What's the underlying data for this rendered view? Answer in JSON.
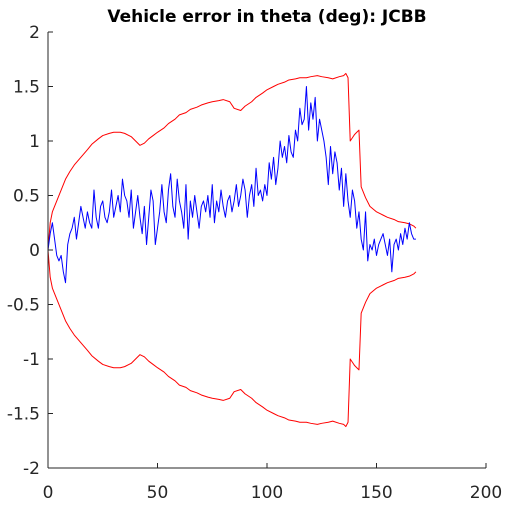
{
  "chart_data": {
    "type": "line",
    "title": "Vehicle error in theta (deg): JCBB",
    "xlabel": "",
    "ylabel": "",
    "xlim": [
      0,
      200
    ],
    "ylim": [
      -2,
      2
    ],
    "xticks": [
      0,
      50,
      100,
      150,
      200
    ],
    "yticks": [
      -2,
      -1.5,
      -1,
      -0.5,
      0,
      0.5,
      1,
      1.5,
      2
    ],
    "xtick_labels": [
      "0",
      "50",
      "100",
      "150",
      "200"
    ],
    "ytick_labels": [
      "-2",
      "-1.5",
      "-1",
      "-0.5",
      "0",
      "0.5",
      "1",
      "1.5",
      "2"
    ],
    "grid": false,
    "legend": "none",
    "series": [
      {
        "color": "#ff0000",
        "role": "upper-bound",
        "x": [
          0,
          1,
          2,
          4,
          6,
          8,
          10,
          12,
          15,
          18,
          20,
          23,
          25,
          28,
          30,
          33,
          35,
          38,
          40,
          42,
          44,
          46,
          48,
          50,
          53,
          55,
          58,
          60,
          63,
          65,
          68,
          70,
          73,
          75,
          78,
          80,
          83,
          85,
          88,
          90,
          93,
          95,
          98,
          100,
          103,
          105,
          108,
          110,
          113,
          115,
          118,
          120,
          123,
          125,
          128,
          130,
          133,
          135,
          136,
          137,
          138,
          139,
          140,
          141,
          142,
          143,
          145,
          147,
          150,
          153,
          155,
          158,
          160,
          163,
          165,
          167,
          168
        ],
        "y": [
          0.0,
          0.25,
          0.35,
          0.45,
          0.55,
          0.65,
          0.72,
          0.78,
          0.85,
          0.92,
          0.97,
          1.02,
          1.05,
          1.07,
          1.08,
          1.08,
          1.07,
          1.04,
          1.0,
          0.96,
          0.98,
          1.02,
          1.05,
          1.08,
          1.12,
          1.16,
          1.2,
          1.24,
          1.26,
          1.29,
          1.31,
          1.33,
          1.35,
          1.36,
          1.37,
          1.38,
          1.36,
          1.3,
          1.28,
          1.32,
          1.36,
          1.4,
          1.44,
          1.47,
          1.5,
          1.52,
          1.54,
          1.56,
          1.57,
          1.58,
          1.58,
          1.59,
          1.6,
          1.59,
          1.58,
          1.57,
          1.59,
          1.6,
          1.62,
          1.58,
          1.0,
          1.03,
          1.06,
          1.08,
          1.1,
          0.58,
          0.48,
          0.4,
          0.35,
          0.32,
          0.3,
          0.28,
          0.26,
          0.25,
          0.24,
          0.22,
          0.2
        ]
      },
      {
        "color": "#ff0000",
        "role": "lower-bound",
        "x": [
          0,
          1,
          2,
          4,
          6,
          8,
          10,
          12,
          15,
          18,
          20,
          23,
          25,
          28,
          30,
          33,
          35,
          38,
          40,
          42,
          44,
          46,
          48,
          50,
          53,
          55,
          58,
          60,
          63,
          65,
          68,
          70,
          73,
          75,
          78,
          80,
          83,
          85,
          88,
          90,
          93,
          95,
          98,
          100,
          103,
          105,
          108,
          110,
          113,
          115,
          118,
          120,
          123,
          125,
          128,
          130,
          133,
          135,
          136,
          137,
          138,
          139,
          140,
          141,
          142,
          143,
          145,
          147,
          150,
          153,
          155,
          158,
          160,
          163,
          165,
          167,
          168
        ],
        "y": [
          0.0,
          -0.25,
          -0.35,
          -0.45,
          -0.55,
          -0.65,
          -0.72,
          -0.78,
          -0.85,
          -0.92,
          -0.97,
          -1.02,
          -1.05,
          -1.07,
          -1.08,
          -1.08,
          -1.07,
          -1.04,
          -1.0,
          -0.96,
          -0.98,
          -1.02,
          -1.05,
          -1.08,
          -1.12,
          -1.16,
          -1.2,
          -1.24,
          -1.26,
          -1.29,
          -1.31,
          -1.33,
          -1.35,
          -1.36,
          -1.37,
          -1.38,
          -1.36,
          -1.3,
          -1.28,
          -1.32,
          -1.36,
          -1.4,
          -1.44,
          -1.47,
          -1.5,
          -1.52,
          -1.54,
          -1.56,
          -1.57,
          -1.58,
          -1.58,
          -1.59,
          -1.6,
          -1.59,
          -1.58,
          -1.57,
          -1.59,
          -1.6,
          -1.62,
          -1.58,
          -1.0,
          -1.03,
          -1.06,
          -1.08,
          -1.1,
          -0.58,
          -0.48,
          -0.4,
          -0.35,
          -0.32,
          -0.3,
          -0.28,
          -0.26,
          -0.25,
          -0.24,
          -0.22,
          -0.2
        ]
      },
      {
        "color": "#0000ff",
        "role": "error",
        "x": [
          0,
          1,
          2,
          3,
          4,
          5,
          6,
          7,
          8,
          9,
          10,
          11,
          12,
          13,
          14,
          15,
          16,
          17,
          18,
          19,
          20,
          21,
          22,
          23,
          24,
          25,
          26,
          27,
          28,
          29,
          30,
          31,
          32,
          33,
          34,
          35,
          36,
          37,
          38,
          39,
          40,
          41,
          42,
          43,
          44,
          45,
          46,
          47,
          48,
          49,
          50,
          51,
          52,
          53,
          54,
          55,
          56,
          57,
          58,
          59,
          60,
          61,
          62,
          63,
          64,
          65,
          66,
          67,
          68,
          69,
          70,
          71,
          72,
          73,
          74,
          75,
          76,
          77,
          78,
          79,
          80,
          81,
          82,
          83,
          84,
          85,
          86,
          87,
          88,
          89,
          90,
          91,
          92,
          93,
          94,
          95,
          96,
          97,
          98,
          99,
          100,
          101,
          102,
          103,
          104,
          105,
          106,
          107,
          108,
          109,
          110,
          111,
          112,
          113,
          114,
          115,
          116,
          117,
          118,
          119,
          120,
          121,
          122,
          123,
          124,
          125,
          126,
          127,
          128,
          129,
          130,
          131,
          132,
          133,
          134,
          135,
          136,
          137,
          138,
          139,
          140,
          141,
          142,
          143,
          144,
          145,
          146,
          147,
          148,
          149,
          150,
          151,
          152,
          153,
          154,
          155,
          156,
          157,
          158,
          159,
          160,
          161,
          162,
          163,
          164,
          165,
          166,
          167,
          168
        ],
        "y": [
          0.0,
          0.15,
          0.25,
          0.1,
          -0.05,
          -0.1,
          -0.05,
          -0.2,
          -0.3,
          0.05,
          0.15,
          0.2,
          0.3,
          0.1,
          0.25,
          0.4,
          0.3,
          0.2,
          0.35,
          0.25,
          0.2,
          0.55,
          0.3,
          0.2,
          0.4,
          0.45,
          0.3,
          0.25,
          0.35,
          0.55,
          0.3,
          0.4,
          0.5,
          0.35,
          0.65,
          0.5,
          0.45,
          0.3,
          0.55,
          0.2,
          0.35,
          0.5,
          0.3,
          0.15,
          0.4,
          0.05,
          0.3,
          0.55,
          0.45,
          0.05,
          0.2,
          0.35,
          0.6,
          0.35,
          0.25,
          0.55,
          0.7,
          0.4,
          0.3,
          0.65,
          0.45,
          0.35,
          0.2,
          0.6,
          0.1,
          0.45,
          0.3,
          0.5,
          0.35,
          0.2,
          0.4,
          0.45,
          0.35,
          0.5,
          0.3,
          0.6,
          0.25,
          0.45,
          0.35,
          0.55,
          0.4,
          0.3,
          0.45,
          0.5,
          0.35,
          0.45,
          0.6,
          0.4,
          0.5,
          0.65,
          0.55,
          0.3,
          0.5,
          0.6,
          0.4,
          0.75,
          0.5,
          0.55,
          0.45,
          0.6,
          0.5,
          0.8,
          0.65,
          0.85,
          0.6,
          0.75,
          1.0,
          0.85,
          0.95,
          0.8,
          1.05,
          0.9,
          0.85,
          1.1,
          1.0,
          1.3,
          1.15,
          1.2,
          1.5,
          1.1,
          1.35,
          1.2,
          1.4,
          1.0,
          1.2,
          1.1,
          1.0,
          0.85,
          0.6,
          0.95,
          0.7,
          0.9,
          0.8,
          0.55,
          0.75,
          0.4,
          0.7,
          0.45,
          0.3,
          0.55,
          0.45,
          0.2,
          0.35,
          0.1,
          0.0,
          0.35,
          -0.1,
          0.05,
          0.0,
          0.1,
          -0.05,
          0.05,
          0.1,
          0.15,
          0.05,
          -0.05,
          0.1,
          -0.2,
          0.05,
          0.1,
          0.0,
          0.15,
          0.05,
          0.2,
          0.1,
          0.25,
          0.15,
          0.1,
          0.1
        ]
      }
    ]
  }
}
